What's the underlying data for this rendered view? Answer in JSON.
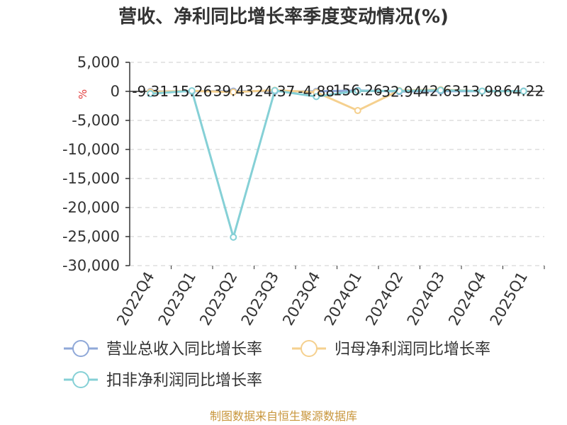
{
  "chart_data": {
    "type": "line",
    "title": "营收、净利同比增长率季度变动情况(%)",
    "unit_label": "%",
    "source": "制图数据来自恒生聚源数据库",
    "categories": [
      "2022Q4",
      "2023Q1",
      "2023Q2",
      "2023Q3",
      "2023Q4",
      "2024Q1",
      "2024Q2",
      "2024Q3",
      "2024Q4",
      "2025Q1"
    ],
    "ylim": [
      -30000,
      5000
    ],
    "yticks": [
      5000,
      0,
      -5000,
      -10000,
      -15000,
      -20000,
      -25000,
      -30000
    ],
    "ytick_labels": [
      "5,000",
      "0",
      "-5,000",
      "-10,000",
      "-15,000",
      "-20,000",
      "-25,000",
      "-30,000"
    ],
    "grid": true,
    "legend_position": "bottom",
    "series": [
      {
        "name": "营业总收入同比增长率",
        "color": "#8fa8d8",
        "values": [
          -9.31,
          15.26,
          39.43,
          24.37,
          -4.88,
          156.26,
          -32.94,
          42.63,
          13.98,
          64.22
        ],
        "labels": [
          "-9.31",
          "15.26",
          "39.43",
          "24.37",
          "-4.88",
          "156.26",
          "-32.94",
          "42.63",
          "13.98",
          "64.22"
        ]
      },
      {
        "name": "归母净利润同比增长率",
        "color": "#f5d08e",
        "values": [
          -100,
          90,
          -120,
          200,
          -150,
          -3300,
          150,
          300,
          50,
          20
        ]
      },
      {
        "name": "扣非净利润同比增长率",
        "color": "#85d0d6",
        "values": [
          -400,
          100,
          -25100,
          150,
          -900,
          100,
          80,
          200,
          50,
          30
        ]
      }
    ]
  }
}
